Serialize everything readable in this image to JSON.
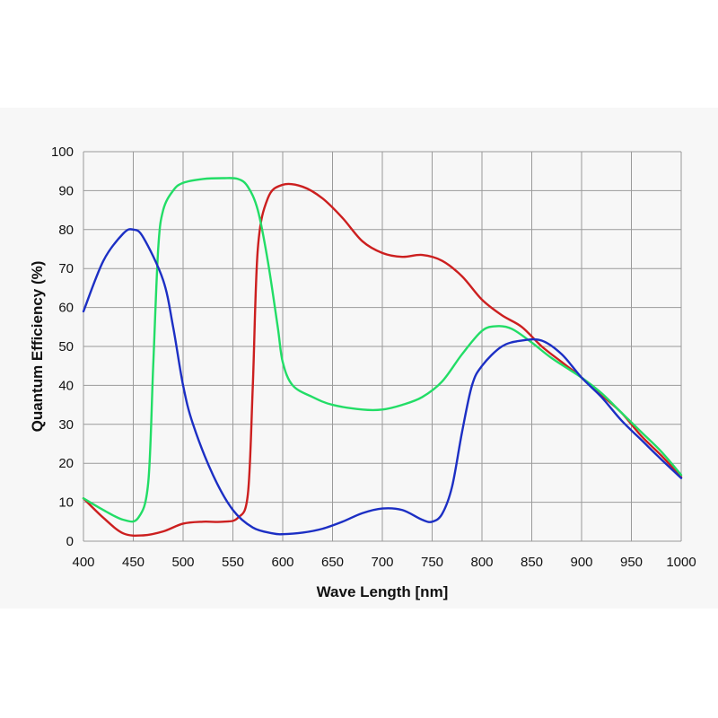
{
  "chart_data": {
    "type": "line",
    "xlabel": "Wave Length [nm]",
    "ylabel": "Quantum Efficiency (%)",
    "xlim": [
      400,
      1000
    ],
    "ylim": [
      0,
      100
    ],
    "x_ticks": [
      400,
      450,
      500,
      550,
      600,
      650,
      700,
      750,
      800,
      850,
      900,
      950,
      1000
    ],
    "y_ticks": [
      0,
      10,
      20,
      30,
      40,
      50,
      60,
      70,
      80,
      90,
      100
    ],
    "grid": true,
    "series": [
      {
        "color": "#cc1f1f",
        "points": [
          [
            400,
            11
          ],
          [
            420,
            6
          ],
          [
            440,
            2
          ],
          [
            460,
            1.5
          ],
          [
            480,
            2.5
          ],
          [
            500,
            4.5
          ],
          [
            520,
            5
          ],
          [
            540,
            5
          ],
          [
            555,
            6
          ],
          [
            565,
            12
          ],
          [
            570,
            40
          ],
          [
            575,
            75
          ],
          [
            585,
            88
          ],
          [
            600,
            91.5
          ],
          [
            620,
            91
          ],
          [
            640,
            88
          ],
          [
            660,
            83
          ],
          [
            680,
            77
          ],
          [
            700,
            74
          ],
          [
            720,
            73
          ],
          [
            740,
            73.5
          ],
          [
            760,
            72
          ],
          [
            780,
            68
          ],
          [
            800,
            62
          ],
          [
            820,
            58
          ],
          [
            840,
            55
          ],
          [
            860,
            50
          ],
          [
            880,
            46
          ],
          [
            900,
            42
          ],
          [
            920,
            37.5
          ],
          [
            940,
            33
          ],
          [
            960,
            27
          ],
          [
            980,
            22
          ],
          [
            1000,
            16.5
          ]
        ]
      },
      {
        "color": "#22dd66",
        "points": [
          [
            400,
            11
          ],
          [
            420,
            8
          ],
          [
            440,
            5.5
          ],
          [
            455,
            6
          ],
          [
            465,
            15
          ],
          [
            470,
            45
          ],
          [
            475,
            75
          ],
          [
            480,
            85
          ],
          [
            490,
            90
          ],
          [
            500,
            92
          ],
          [
            520,
            93
          ],
          [
            540,
            93.2
          ],
          [
            555,
            93
          ],
          [
            565,
            91
          ],
          [
            575,
            85
          ],
          [
            585,
            72
          ],
          [
            595,
            55
          ],
          [
            600,
            46
          ],
          [
            610,
            40
          ],
          [
            630,
            37
          ],
          [
            650,
            35
          ],
          [
            680,
            33.8
          ],
          [
            700,
            33.8
          ],
          [
            720,
            35
          ],
          [
            740,
            37
          ],
          [
            760,
            41
          ],
          [
            780,
            48
          ],
          [
            800,
            54
          ],
          [
            815,
            55.2
          ],
          [
            830,
            54.5
          ],
          [
            850,
            51
          ],
          [
            870,
            47
          ],
          [
            900,
            42
          ],
          [
            920,
            38
          ],
          [
            940,
            33
          ],
          [
            960,
            28
          ],
          [
            980,
            23
          ],
          [
            1000,
            17
          ]
        ]
      },
      {
        "color": "#1c2fc4",
        "points": [
          [
            400,
            59
          ],
          [
            420,
            72
          ],
          [
            440,
            79
          ],
          [
            450,
            80
          ],
          [
            460,
            78
          ],
          [
            480,
            67
          ],
          [
            490,
            55
          ],
          [
            500,
            40
          ],
          [
            510,
            30
          ],
          [
            530,
            17
          ],
          [
            550,
            8
          ],
          [
            570,
            3.5
          ],
          [
            590,
            2
          ],
          [
            600,
            1.8
          ],
          [
            620,
            2.2
          ],
          [
            640,
            3.2
          ],
          [
            660,
            5
          ],
          [
            680,
            7.2
          ],
          [
            700,
            8.4
          ],
          [
            720,
            8
          ],
          [
            740,
            5.5
          ],
          [
            750,
            5
          ],
          [
            760,
            7
          ],
          [
            770,
            14
          ],
          [
            780,
            28
          ],
          [
            790,
            40
          ],
          [
            800,
            45
          ],
          [
            820,
            50
          ],
          [
            840,
            51.5
          ],
          [
            860,
            51.5
          ],
          [
            880,
            48
          ],
          [
            900,
            42
          ],
          [
            920,
            37
          ],
          [
            940,
            31
          ],
          [
            960,
            26
          ],
          [
            980,
            21
          ],
          [
            1000,
            16.2
          ]
        ]
      }
    ]
  }
}
